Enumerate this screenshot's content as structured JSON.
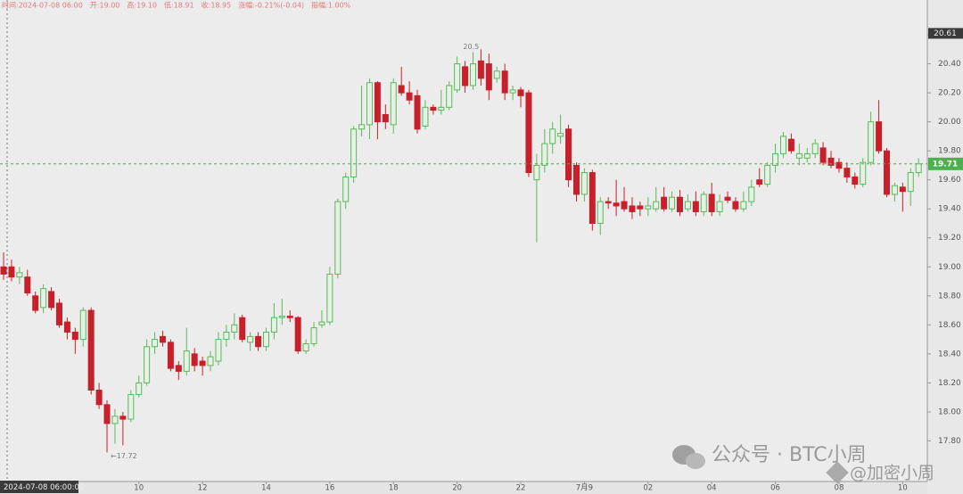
{
  "chart_data": {
    "type": "candlestick",
    "info": [
      "时间:2024-07-08 06:00",
      "开:19.00",
      "高:19.10",
      "低:18.91",
      "收:18.95",
      "涨幅:-0.21%(-0.04)",
      "振幅:1.00%"
    ],
    "cursor_time": "2024-07-08 06:00:00",
    "open": [
      19.0,
      19.0,
      18.93,
      18.93,
      18.8,
      18.72,
      18.83,
      18.75,
      18.62,
      18.55,
      18.5,
      18.7,
      18.15,
      18.05,
      17.92,
      17.97,
      17.95,
      18.12,
      18.2,
      18.45,
      18.52,
      18.48,
      18.32,
      18.28,
      18.4,
      18.35,
      18.32,
      18.35,
      18.5,
      18.55,
      18.65,
      18.48,
      18.52,
      18.45,
      18.55,
      18.65,
      18.66,
      18.65,
      18.42,
      18.47,
      18.6,
      18.62,
      18.95,
      19.45,
      19.62,
      19.95,
      19.98,
      20.27,
      20.05,
      19.98,
      20.25,
      20.2,
      20.18,
      19.97,
      20.1,
      20.08,
      20.1,
      20.22,
      20.38,
      20.25,
      20.42,
      20.4,
      20.3,
      20.35,
      20.2,
      20.22,
      20.2,
      19.6,
      19.7,
      19.85,
      19.9,
      19.95,
      19.7,
      19.5,
      19.65,
      19.3,
      19.45,
      19.44,
      19.45,
      19.42,
      19.42,
      19.4,
      19.4,
      19.48,
      19.4,
      19.48,
      19.4,
      19.45,
      19.38,
      19.5,
      19.38,
      19.48,
      19.45,
      19.4,
      19.45,
      19.6,
      19.57,
      19.7,
      19.78,
      19.88,
      19.75,
      19.75,
      19.78,
      19.82,
      19.75,
      19.72,
      19.68,
      19.62,
      19.57,
      19.72,
      20.0,
      19.8,
      19.5,
      19.55,
      19.52,
      19.65
    ],
    "high": [
      19.1,
      19.05,
      19.0,
      18.98,
      18.83,
      18.88,
      18.86,
      18.78,
      18.65,
      18.58,
      18.72,
      18.72,
      18.2,
      18.08,
      18.02,
      18.0,
      18.15,
      18.25,
      18.5,
      18.55,
      18.56,
      18.5,
      18.35,
      18.58,
      18.44,
      18.38,
      18.42,
      18.55,
      18.6,
      18.68,
      18.67,
      18.55,
      18.55,
      18.58,
      18.75,
      18.78,
      18.7,
      18.66,
      18.5,
      18.62,
      18.7,
      19.0,
      19.47,
      19.65,
      19.97,
      20.25,
      20.3,
      20.28,
      20.12,
      20.3,
      20.38,
      20.28,
      20.22,
      20.15,
      20.12,
      20.22,
      20.28,
      20.45,
      20.42,
      20.48,
      20.5,
      20.47,
      20.38,
      20.4,
      20.25,
      20.24,
      20.22,
      19.78,
      19.95,
      20.0,
      20.05,
      19.98,
      19.72,
      19.68,
      19.67,
      19.48,
      19.48,
      19.6,
      19.55,
      19.48,
      19.45,
      19.48,
      19.55,
      19.55,
      19.52,
      19.53,
      19.5,
      19.52,
      19.52,
      19.58,
      19.5,
      19.52,
      19.48,
      19.52,
      19.6,
      19.68,
      19.72,
      19.85,
      19.93,
      19.92,
      19.85,
      19.82,
      19.88,
      19.86,
      19.8,
      19.75,
      19.72,
      19.65,
      19.75,
      20.07,
      20.15,
      19.82,
      19.58,
      19.58,
      19.68,
      19.75
    ],
    "low": [
      18.91,
      18.9,
      18.88,
      18.8,
      18.68,
      18.68,
      18.7,
      18.58,
      18.5,
      18.4,
      18.45,
      18.12,
      18.02,
      17.72,
      17.78,
      17.77,
      17.93,
      18.1,
      18.18,
      18.4,
      18.45,
      18.28,
      18.22,
      18.25,
      18.28,
      18.25,
      18.28,
      18.32,
      18.45,
      18.5,
      18.48,
      18.42,
      18.42,
      18.42,
      18.5,
      18.6,
      18.62,
      18.4,
      18.4,
      18.45,
      18.58,
      18.6,
      18.92,
      19.4,
      19.58,
      19.9,
      19.88,
      19.88,
      19.95,
      19.92,
      20.18,
      20.12,
      19.92,
      19.95,
      20.05,
      20.05,
      20.08,
      20.2,
      20.2,
      20.22,
      20.25,
      20.15,
      20.27,
      20.15,
      20.15,
      20.1,
      19.62,
      19.17,
      19.65,
      19.78,
      19.85,
      19.55,
      19.45,
      19.45,
      19.25,
      19.22,
      19.4,
      19.35,
      19.38,
      19.33,
      19.35,
      19.35,
      19.38,
      19.38,
      19.38,
      19.35,
      19.38,
      19.35,
      19.35,
      19.35,
      19.35,
      19.44,
      19.38,
      19.38,
      19.42,
      19.55,
      19.55,
      19.65,
      19.75,
      19.78,
      19.7,
      19.72,
      19.75,
      19.7,
      19.68,
      19.65,
      19.58,
      19.54,
      19.55,
      19.7,
      19.78,
      19.48,
      19.45,
      19.38,
      19.42,
      19.62
    ],
    "close": [
      18.95,
      18.93,
      18.96,
      18.82,
      18.7,
      18.85,
      18.72,
      18.6,
      18.55,
      18.5,
      18.7,
      18.15,
      18.05,
      17.92,
      17.97,
      17.95,
      18.12,
      18.2,
      18.45,
      18.5,
      18.48,
      18.3,
      18.28,
      18.42,
      18.32,
      18.32,
      18.38,
      18.5,
      18.55,
      18.6,
      18.5,
      18.52,
      18.45,
      18.55,
      18.65,
      18.66,
      18.65,
      18.42,
      18.47,
      18.58,
      18.62,
      18.95,
      19.45,
      19.62,
      19.95,
      19.98,
      20.27,
      20.0,
      20.0,
      20.27,
      20.2,
      20.15,
      19.95,
      20.1,
      20.08,
      20.1,
      20.25,
      20.4,
      20.25,
      20.4,
      20.3,
      20.22,
      20.35,
      20.2,
      20.22,
      20.18,
      19.65,
      19.7,
      19.85,
      19.95,
      19.92,
      19.6,
      19.5,
      19.65,
      19.3,
      19.45,
      19.44,
      19.42,
      19.4,
      19.38,
      19.4,
      19.42,
      19.45,
      19.4,
      19.48,
      19.38,
      19.45,
      19.38,
      19.5,
      19.38,
      19.45,
      19.46,
      19.4,
      19.45,
      19.55,
      19.57,
      19.7,
      19.78,
      19.9,
      19.8,
      19.78,
      19.78,
      19.85,
      19.72,
      19.7,
      19.68,
      19.62,
      19.57,
      19.72,
      20.0,
      19.8,
      19.5,
      19.56,
      19.52,
      19.65,
      19.71
    ],
    "up_color": "#5cb85c",
    "down_color": "#c8202a",
    "xlim": [
      -0.45,
      116.1
    ],
    "xticks": [
      {
        "value": 17,
        "label": "10"
      },
      {
        "value": 25,
        "label": "12"
      },
      {
        "value": 33,
        "label": "14"
      },
      {
        "value": 41,
        "label": "16"
      },
      {
        "value": 49,
        "label": "18"
      },
      {
        "value": 57,
        "label": "20"
      },
      {
        "value": 65,
        "label": "22"
      },
      {
        "value": 73,
        "label": "7月9"
      },
      {
        "value": 81,
        "label": "02"
      },
      {
        "value": 89,
        "label": "04"
      },
      {
        "value": 97,
        "label": "06"
      },
      {
        "value": 105,
        "label": "08"
      },
      {
        "value": 113,
        "label": "10"
      }
    ],
    "ylim": [
      17.52,
      20.84
    ],
    "yticks": [
      {
        "value": 17.8,
        "label": "17.80"
      },
      {
        "value": 18.0,
        "label": "18.00"
      },
      {
        "value": 18.2,
        "label": "18.20"
      },
      {
        "value": 18.4,
        "label": "18.40"
      },
      {
        "value": 18.6,
        "label": "18.60"
      },
      {
        "value": 18.8,
        "label": "18.80"
      },
      {
        "value": 19.0,
        "label": "19.00"
      },
      {
        "value": 19.2,
        "label": "19.20"
      },
      {
        "value": 19.4,
        "label": "19.40"
      },
      {
        "value": 19.6,
        "label": "19.60"
      },
      {
        "value": 19.8,
        "label": "19.80"
      },
      {
        "value": 20.0,
        "label": "20.00"
      },
      {
        "value": 20.2,
        "label": "20.20"
      },
      {
        "value": 20.4,
        "label": "20.40"
      },
      {
        "value": 20.6,
        "label": "20.60"
      }
    ],
    "grid": false,
    "top_price": 20.61,
    "last_price": 19.71,
    "last_price_color": "#4caf50",
    "annotations": [
      {
        "text": "20.5",
        "index": 60,
        "value": 20.5
      },
      {
        "text": "←17.72",
        "index": 13,
        "value": 17.72
      }
    ],
    "watermark": [
      "公众号 · BTC小周",
      "@加密小周"
    ]
  }
}
